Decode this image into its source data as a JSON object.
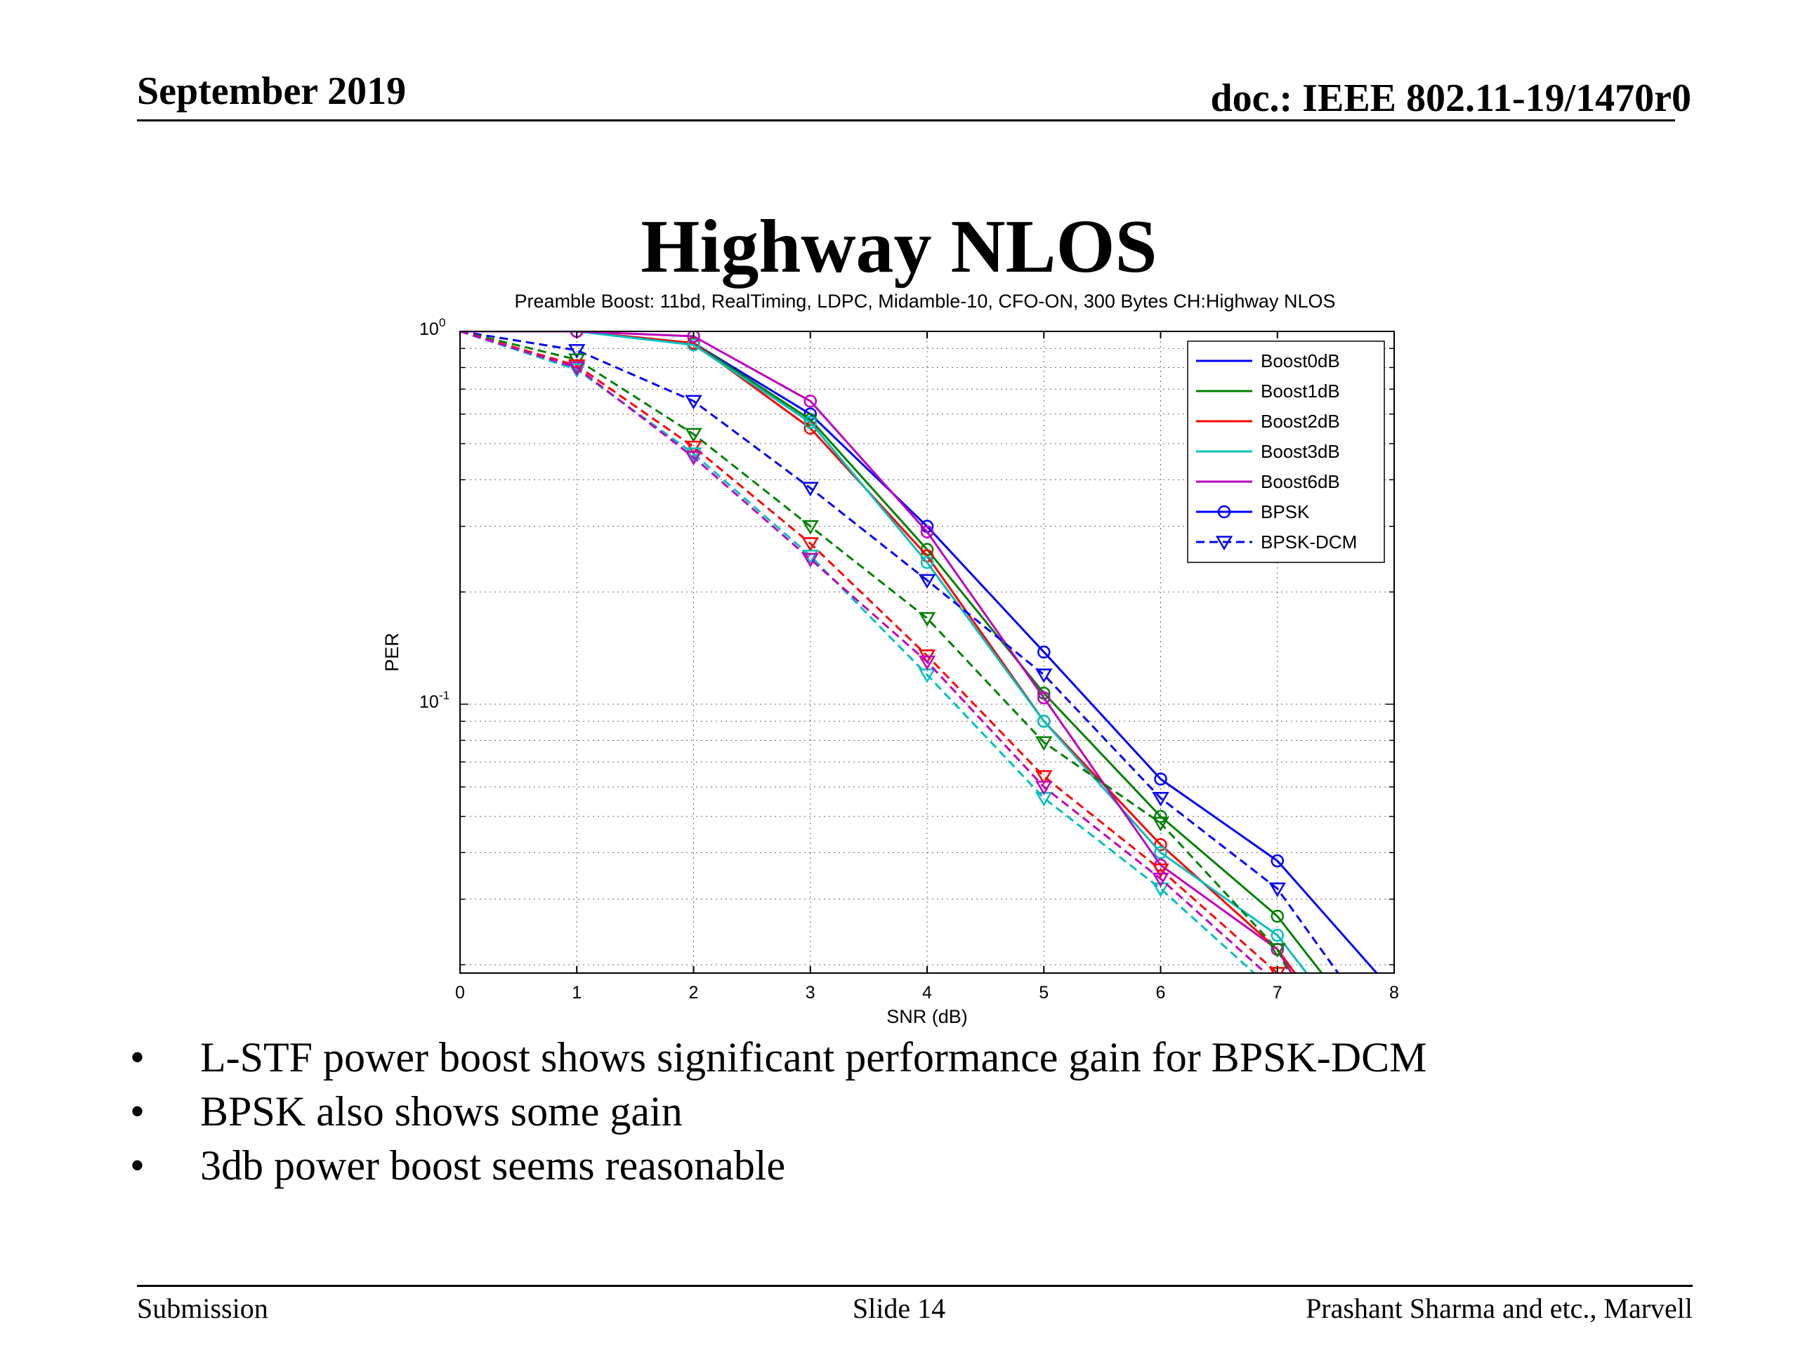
{
  "header": {
    "date": "September 2019",
    "doc": "doc.: IEEE 802.11-19/1470r0"
  },
  "slide": {
    "title": "Highway NLOS",
    "bullets": [
      "L-STF power boost shows significant performance gain for BPSK-DCM",
      "BPSK also shows some gain",
      "3db power boost seems reasonable"
    ],
    "bullet_marker": "•"
  },
  "footer": {
    "left": "Submission",
    "center": "Slide 14",
    "right": "Prashant Sharma and etc., Marvell"
  },
  "chart_data": {
    "type": "line",
    "title": "Preamble Boost: 11bd, RealTiming, LDPC, Midamble-10, CFO-ON, 300 Bytes CH:Highway NLOS",
    "xlabel": "SNR (dB)",
    "ylabel": "PER",
    "yscale": "log",
    "xlim": [
      0,
      8
    ],
    "ylim": [
      0.019,
      1
    ],
    "xticks": [
      0,
      1,
      2,
      3,
      4,
      5,
      6,
      7,
      8
    ],
    "yticks": [
      {
        "value": 1,
        "base": "10",
        "exp": "0"
      },
      {
        "value": 0.1,
        "base": "10",
        "exp": "-1"
      }
    ],
    "grid": true,
    "legend_position": "top-right",
    "legend": [
      {
        "label": "Boost0dB",
        "color": "#0000ff",
        "style": "solid",
        "marker": "none"
      },
      {
        "label": "Boost1dB",
        "color": "#008000",
        "style": "solid",
        "marker": "none"
      },
      {
        "label": "Boost2dB",
        "color": "#ff0000",
        "style": "solid",
        "marker": "none"
      },
      {
        "label": "Boost3dB",
        "color": "#00bfbf",
        "style": "solid",
        "marker": "none"
      },
      {
        "label": "Boost6dB",
        "color": "#bf00bf",
        "style": "solid",
        "marker": "none"
      },
      {
        "label": "BPSK",
        "color": "#0000ff",
        "style": "solid",
        "marker": "circle"
      },
      {
        "label": "BPSK-DCM",
        "color": "#0000ff",
        "style": "dashed",
        "marker": "triangle-down"
      }
    ],
    "series": [
      {
        "name": "Boost0dB BPSK",
        "color": "#0000ff",
        "style": "solid",
        "marker": "circle",
        "x": [
          0,
          1,
          2,
          3,
          4,
          5,
          6,
          7,
          7.85
        ],
        "y": [
          1,
          1,
          0.93,
          0.6,
          0.3,
          0.138,
          0.063,
          0.038,
          0.019
        ]
      },
      {
        "name": "Boost1dB BPSK",
        "color": "#008000",
        "style": "solid",
        "marker": "circle",
        "x": [
          0,
          1,
          2,
          3,
          4,
          5,
          6,
          7,
          7.38
        ],
        "y": [
          1,
          1,
          0.93,
          0.58,
          0.26,
          0.107,
          0.05,
          0.027,
          0.019
        ]
      },
      {
        "name": "Boost2dB BPSK",
        "color": "#ff0000",
        "style": "solid",
        "marker": "circle",
        "x": [
          0,
          1,
          2,
          3,
          4,
          5,
          6,
          7,
          7.15
        ],
        "y": [
          1,
          1,
          0.93,
          0.55,
          0.25,
          0.09,
          0.042,
          0.022,
          0.019
        ]
      },
      {
        "name": "Boost3dB BPSK",
        "color": "#00bfbf",
        "style": "solid",
        "marker": "circle",
        "x": [
          0,
          1,
          2,
          3,
          4,
          5,
          6,
          7,
          7.25
        ],
        "y": [
          1,
          1,
          0.92,
          0.57,
          0.24,
          0.09,
          0.04,
          0.024,
          0.019
        ]
      },
      {
        "name": "Boost6dB BPSK",
        "color": "#bf00bf",
        "style": "solid",
        "marker": "circle",
        "x": [
          0,
          1,
          2,
          3,
          4,
          5,
          6,
          7,
          7.12
        ],
        "y": [
          1,
          1,
          0.97,
          0.65,
          0.29,
          0.104,
          0.037,
          0.022,
          0.019
        ]
      },
      {
        "name": "Boost0dB BPSK-DCM",
        "color": "#0000ff",
        "style": "dashed",
        "marker": "triangle-down",
        "x": [
          0,
          1,
          2,
          3,
          4,
          5,
          6,
          7,
          7.52
        ],
        "y": [
          1,
          0.89,
          0.65,
          0.38,
          0.215,
          0.12,
          0.056,
          0.032,
          0.019
        ]
      },
      {
        "name": "Boost1dB BPSK-DCM",
        "color": "#008000",
        "style": "dashed",
        "marker": "triangle-down",
        "x": [
          0,
          1,
          2,
          3,
          4,
          5,
          6,
          7,
          7.1
        ],
        "y": [
          1,
          0.84,
          0.53,
          0.3,
          0.17,
          0.079,
          0.048,
          0.022,
          0.019
        ]
      },
      {
        "name": "Boost2dB BPSK-DCM",
        "color": "#ff0000",
        "style": "dashed",
        "marker": "triangle-down",
        "x": [
          0,
          1,
          2,
          3,
          4,
          5,
          6,
          7
        ],
        "y": [
          1,
          0.81,
          0.49,
          0.27,
          0.135,
          0.064,
          0.036,
          0.019
        ]
      },
      {
        "name": "Boost3dB BPSK-DCM",
        "color": "#00bfbf",
        "style": "dashed",
        "marker": "triangle-down",
        "x": [
          0,
          1,
          2,
          3,
          4,
          5,
          6,
          6.8
        ],
        "y": [
          1,
          0.79,
          0.47,
          0.25,
          0.12,
          0.056,
          0.032,
          0.019
        ]
      },
      {
        "name": "Boost6dB BPSK-DCM",
        "color": "#bf00bf",
        "style": "dashed",
        "marker": "triangle-down",
        "x": [
          0,
          1,
          2,
          3,
          4,
          5,
          6,
          6.9
        ],
        "y": [
          1,
          0.8,
          0.46,
          0.245,
          0.13,
          0.06,
          0.034,
          0.019
        ]
      }
    ]
  }
}
